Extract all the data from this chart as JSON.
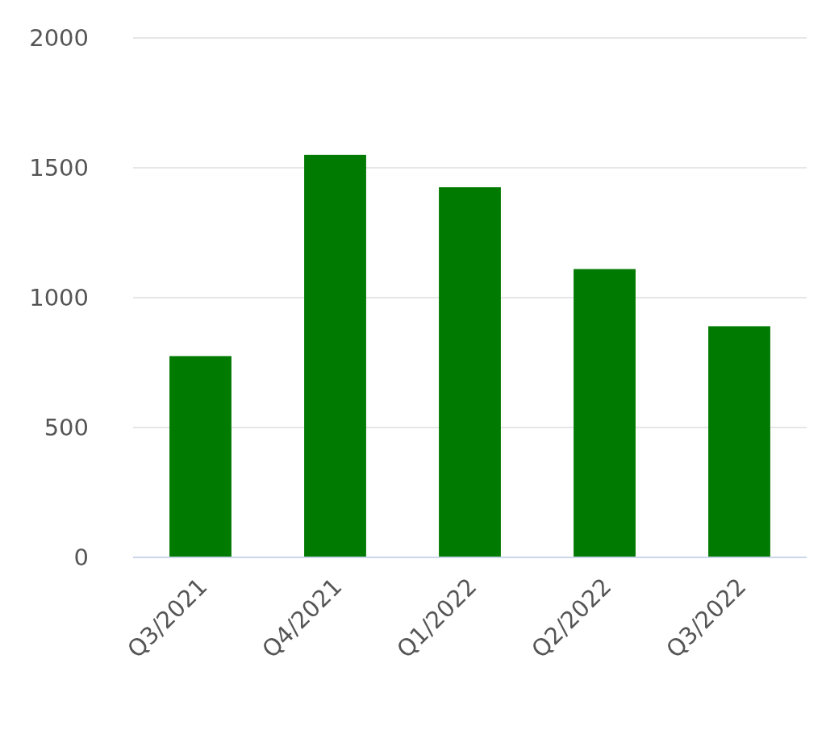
{
  "chart_data": {
    "type": "bar",
    "categories": [
      "Q3/2021",
      "Q4/2021",
      "Q1/2022",
      "Q2/2022",
      "Q3/2022"
    ],
    "values": [
      775,
      1550,
      1425,
      1110,
      890
    ],
    "color": "#007a00",
    "ylim": [
      0,
      2000
    ],
    "yticks": [
      0,
      500,
      1000,
      1500,
      2000
    ],
    "grid": "y"
  }
}
